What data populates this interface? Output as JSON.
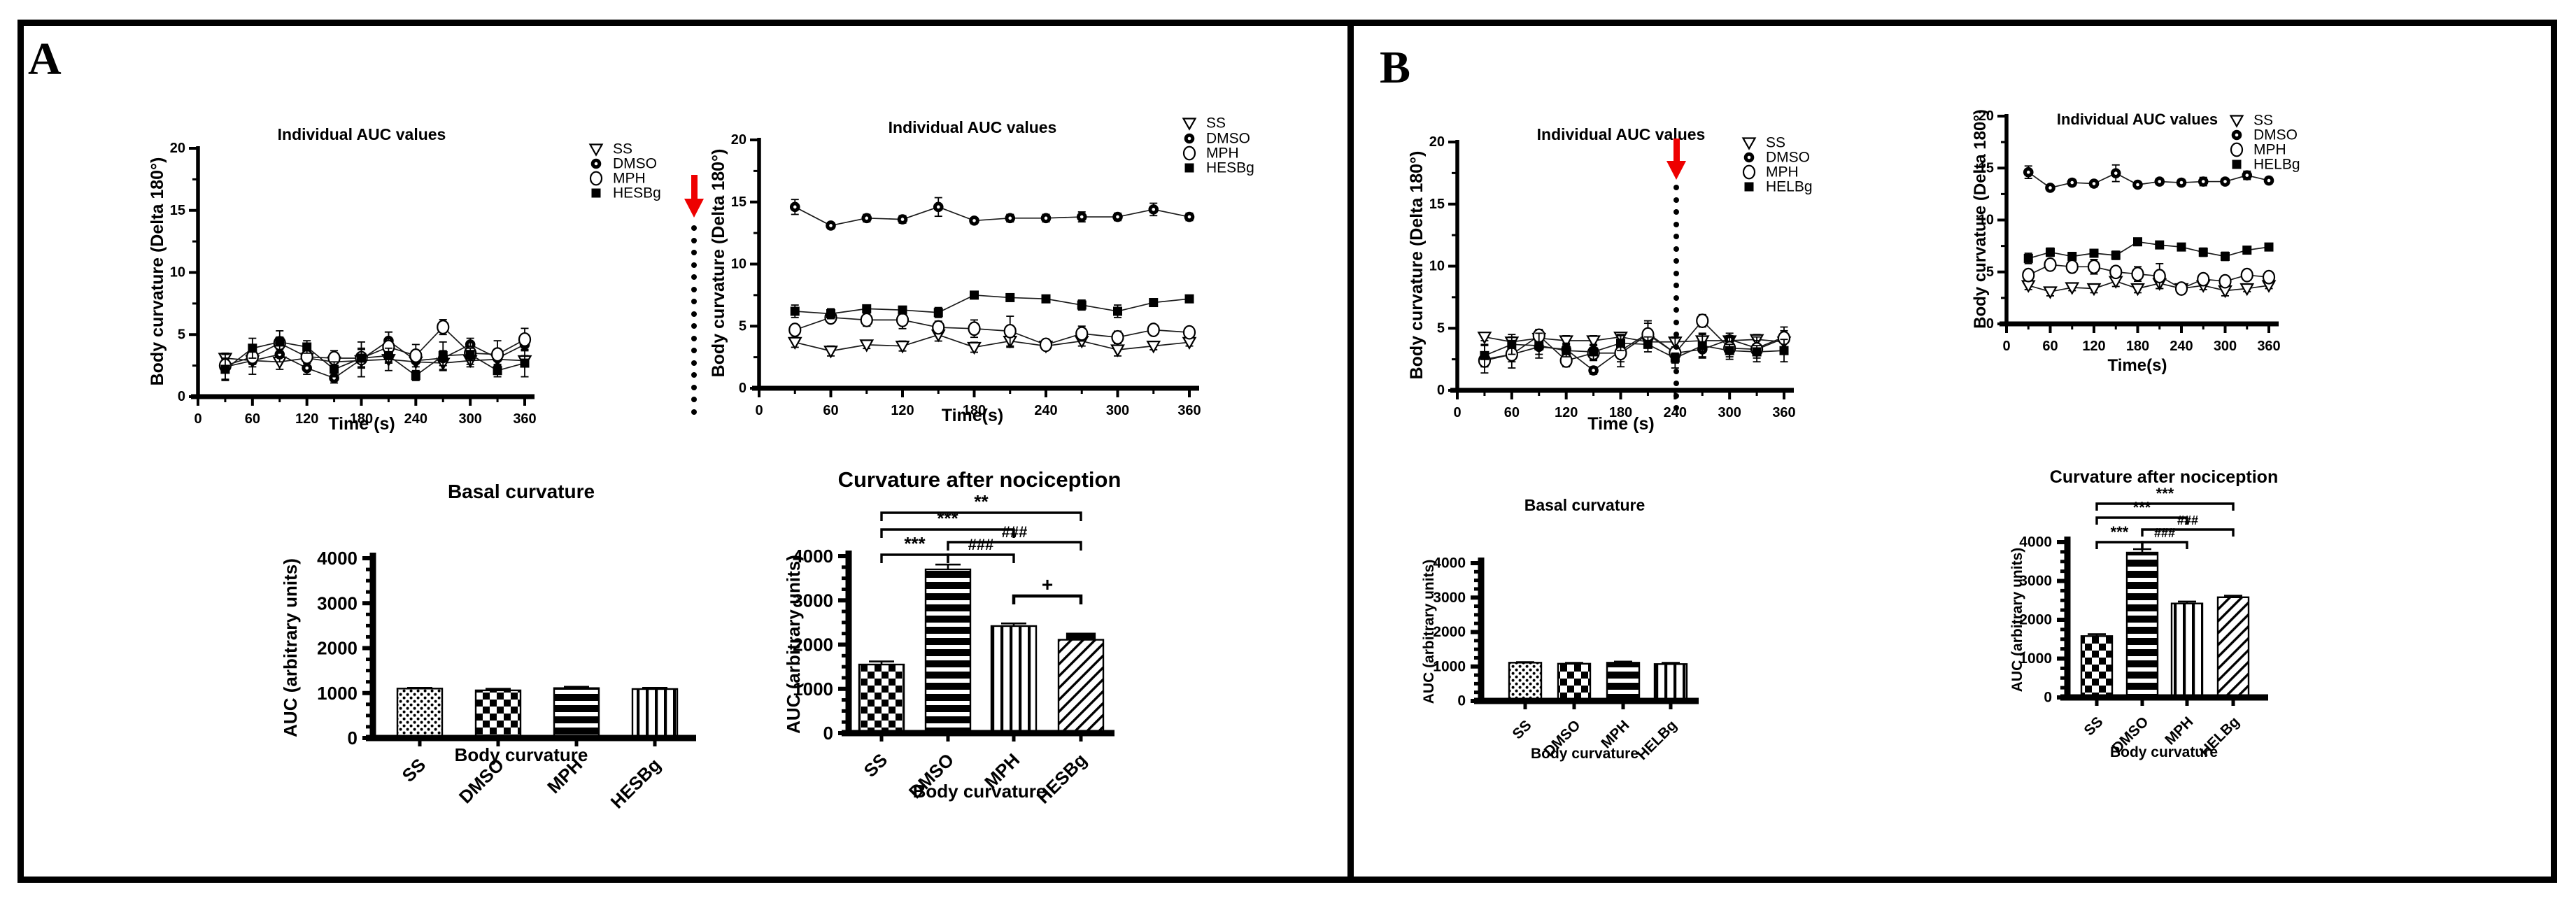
{
  "figure": {
    "arrow_color": "#ee0000",
    "ink_color": "#000000",
    "background_color": "#ffffff"
  },
  "panels": [
    {
      "label": "A"
    },
    {
      "label": "B"
    }
  ],
  "chart_data": [
    {
      "id": "A1",
      "panel": "A",
      "type": "line",
      "title": "Individual AUC values",
      "xlabel": "Time (s)",
      "ylabel": "Body curvature (Delta 180°)",
      "xlim": [
        0,
        360
      ],
      "ylim": [
        0,
        20
      ],
      "xticks": [
        0,
        60,
        120,
        180,
        240,
        300,
        360
      ],
      "yticks": [
        0,
        5,
        10,
        15,
        20
      ],
      "grid": false,
      "legend_position": "top-right",
      "x": [
        30,
        60,
        90,
        120,
        150,
        180,
        210,
        240,
        270,
        300,
        330,
        360
      ],
      "series": [
        {
          "name": "SS",
          "marker": "triangle-down-open",
          "values": [
            3.1,
            2.9,
            2.8,
            3.1,
            2.8,
            2.9,
            3.0,
            2.8,
            2.7,
            2.9,
            3.0,
            2.9
          ],
          "err": [
            0.4,
            0.5,
            0.6,
            0.4,
            0.5,
            0.5,
            0.9,
            0.4,
            0.6,
            0.5,
            0.5,
            0.4
          ]
        },
        {
          "name": "DMSO",
          "marker": "circle-dot",
          "values": [
            2.4,
            2.9,
            3.4,
            2.3,
            1.5,
            3.0,
            4.5,
            2.9,
            3.1,
            4.2,
            3.1,
            4.2
          ],
          "err": [
            1.0,
            1.1,
            0.6,
            0.5,
            0.4,
            1.4,
            0.7,
            1.3,
            0.6,
            0.5,
            0.6,
            0.5
          ]
        },
        {
          "name": "MPH",
          "marker": "circle-open",
          "values": [
            2.5,
            3.2,
            4.3,
            3.2,
            3.1,
            3.1,
            4.0,
            3.3,
            5.6,
            3.5,
            3.4,
            4.6
          ],
          "err": [
            0.5,
            0.6,
            0.5,
            0.5,
            0.6,
            0.8,
            1.2,
            0.4,
            0.6,
            0.9,
            1.1,
            0.9
          ]
        },
        {
          "name": "HESBg",
          "marker": "square-filled",
          "values": [
            2.2,
            3.9,
            4.4,
            4.0,
            2.2,
            3.1,
            3.3,
            1.7,
            3.3,
            3.4,
            2.1,
            2.7
          ],
          "err": [
            0.9,
            0.8,
            0.9,
            0.5,
            0.6,
            0.7,
            0.6,
            0.4,
            1.1,
            0.5,
            0.5,
            1.1
          ]
        }
      ]
    },
    {
      "id": "A2",
      "panel": "A",
      "type": "line",
      "title": "Individual AUC values",
      "xlabel": "Time(s)",
      "ylabel": "Body curvature (Delta 180°)",
      "xlim": [
        0,
        360
      ],
      "ylim": [
        0,
        20
      ],
      "xticks": [
        0,
        60,
        120,
        180,
        240,
        300,
        360
      ],
      "yticks": [
        0,
        5,
        10,
        15,
        20
      ],
      "grid": false,
      "legend_position": "top-right",
      "x": [
        30,
        60,
        90,
        120,
        150,
        180,
        210,
        240,
        270,
        300,
        330,
        360
      ],
      "series": [
        {
          "name": "SS",
          "marker": "triangle-down-open",
          "values": [
            3.7,
            3.0,
            3.5,
            3.4,
            4.3,
            3.3,
            3.8,
            3.4,
            3.8,
            3.1,
            3.4,
            3.7
          ],
          "err": [
            0.4,
            0.4,
            0.3,
            0.4,
            0.5,
            0.4,
            0.5,
            0.3,
            0.4,
            0.5,
            0.3,
            0.3
          ]
        },
        {
          "name": "DMSO",
          "marker": "circle-dot",
          "values": [
            14.6,
            13.1,
            13.7,
            13.6,
            14.6,
            13.5,
            13.7,
            13.7,
            13.8,
            13.8,
            14.4,
            13.8
          ],
          "err": [
            0.6,
            0.25,
            0.3,
            0.3,
            0.75,
            0.25,
            0.3,
            0.3,
            0.4,
            0.3,
            0.5,
            0.3
          ]
        },
        {
          "name": "MPH",
          "marker": "circle-open",
          "values": [
            4.7,
            5.7,
            5.5,
            5.5,
            4.9,
            4.8,
            4.6,
            3.5,
            4.4,
            4.1,
            4.7,
            4.5
          ],
          "err": [
            0.4,
            0.4,
            0.5,
            0.7,
            0.5,
            0.7,
            1.2,
            0.3,
            0.6,
            0.5,
            0.4,
            0.4
          ]
        },
        {
          "name": "HESBg",
          "marker": "square-filled",
          "values": [
            6.2,
            6.0,
            6.4,
            6.3,
            6.1,
            7.5,
            7.3,
            7.2,
            6.7,
            6.2,
            6.9,
            7.2
          ],
          "err": [
            0.5,
            0.4,
            0.3,
            0.3,
            0.4,
            0.3,
            0.3,
            0.3,
            0.4,
            0.5,
            0.3,
            0.3
          ]
        }
      ]
    },
    {
      "id": "A3",
      "panel": "A",
      "type": "bar",
      "title": "Basal curvature",
      "xlabel": "Body curvature",
      "ylabel": "AUC (arbitrary units)",
      "ylim": [
        0,
        4000
      ],
      "yticks": [
        0,
        1000,
        2000,
        3000,
        4000
      ],
      "categories": [
        "SS",
        "DMSO",
        "MPH",
        "HESBg"
      ],
      "values": [
        1100,
        1060,
        1110,
        1090
      ],
      "errors": [
        15,
        35,
        30,
        25
      ],
      "patterns": [
        "dots",
        "checker",
        "hstripes",
        "vstripes"
      ],
      "solid_cap_indices": [],
      "sig": []
    },
    {
      "id": "A4",
      "panel": "A",
      "type": "bar",
      "title": "Curvature after nociception",
      "xlabel": "Body curvature",
      "ylabel": "AUC (arbitrary units)",
      "ylim": [
        0,
        4000
      ],
      "yticks": [
        0,
        1000,
        2000,
        3000,
        4000
      ],
      "categories": [
        "SS",
        "DMSO",
        "MPH",
        "HESBg"
      ],
      "values": [
        1550,
        3700,
        2420,
        2110
      ],
      "errors": [
        70,
        110,
        60,
        80
      ],
      "patterns": [
        "checker",
        "hstripes",
        "vstripes",
        "diag"
      ],
      "solid_cap_indices": [
        3
      ],
      "sig": [
        {
          "a": 0,
          "b": 3,
          "label": "**"
        },
        {
          "a": 0,
          "b": 2,
          "label": "***"
        },
        {
          "a": 1,
          "b": 3,
          "label": "###"
        },
        {
          "a": 0,
          "b": 1,
          "label": "***"
        },
        {
          "a": 1,
          "b": 2,
          "label": "###"
        },
        {
          "a": 2,
          "b": 3,
          "label": "+"
        }
      ]
    },
    {
      "id": "B1",
      "panel": "B",
      "type": "line",
      "title": "Individual AUC values",
      "xlabel": "Time (s)",
      "ylabel": "Body curvature (Delta 180°)",
      "xlim": [
        0,
        360
      ],
      "ylim": [
        0,
        20
      ],
      "xticks": [
        0,
        60,
        120,
        180,
        240,
        300,
        360
      ],
      "yticks": [
        0,
        5,
        10,
        15,
        20
      ],
      "grid": false,
      "legend_position": "top-right",
      "x": [
        30,
        60,
        90,
        120,
        150,
        180,
        210,
        240,
        270,
        300,
        330,
        360
      ],
      "series": [
        {
          "name": "SS",
          "marker": "triangle-down-open",
          "values": [
            4.3,
            3.9,
            4.2,
            4.0,
            4.0,
            4.3,
            3.9,
            3.9,
            4.0,
            4.0,
            4.1,
            3.9
          ],
          "err": [
            0.3,
            0.4,
            0.5,
            0.4,
            0.4,
            0.3,
            0.5,
            0.4,
            0.5,
            0.4,
            0.4,
            0.4
          ]
        },
        {
          "name": "DMSO",
          "marker": "circle-dot",
          "values": [
            2.5,
            2.9,
            3.5,
            3.3,
            1.6,
            3.2,
            4.6,
            3.0,
            3.3,
            4.1,
            3.4,
            4.3
          ],
          "err": [
            1.1,
            1.1,
            0.6,
            0.5,
            0.3,
            1.3,
            0.8,
            1.2,
            0.6,
            0.5,
            0.6,
            0.5
          ]
        },
        {
          "name": "MPH",
          "marker": "circle-open",
          "values": [
            2.4,
            2.9,
            4.4,
            2.4,
            3.0,
            3.0,
            4.5,
            3.0,
            5.6,
            3.4,
            3.3,
            4.2
          ],
          "err": [
            0.5,
            0.6,
            0.5,
            0.5,
            0.6,
            0.7,
            1.1,
            0.4,
            0.5,
            0.9,
            1.0,
            0.9
          ]
        },
        {
          "name": "HELBg",
          "marker": "square-filled",
          "values": [
            2.8,
            3.7,
            3.6,
            3.2,
            3.1,
            3.8,
            3.7,
            2.6,
            3.6,
            3.2,
            3.1,
            3.2
          ],
          "err": [
            0.9,
            0.8,
            1.0,
            0.5,
            0.6,
            0.6,
            0.6,
            0.4,
            1.0,
            0.5,
            0.5,
            0.9
          ]
        }
      ]
    },
    {
      "id": "B2",
      "panel": "B",
      "type": "line",
      "title": "Individual AUC values",
      "xlabel": "Time(s)",
      "ylabel": "Body curvature (Delta 180°)",
      "xlim": [
        0,
        360
      ],
      "ylim": [
        0,
        20
      ],
      "xticks": [
        0,
        60,
        120,
        180,
        240,
        300,
        360
      ],
      "yticks": [
        0,
        5,
        10,
        15,
        20
      ],
      "grid": false,
      "legend_position": "top-right",
      "x": [
        30,
        60,
        90,
        120,
        150,
        180,
        210,
        240,
        270,
        300,
        330,
        360
      ],
      "series": [
        {
          "name": "SS",
          "marker": "triangle-down-open",
          "values": [
            3.7,
            3.1,
            3.5,
            3.4,
            4.1,
            3.4,
            3.9,
            3.4,
            3.7,
            3.2,
            3.4,
            3.7
          ],
          "err": [
            0.4,
            0.4,
            0.3,
            0.4,
            0.5,
            0.4,
            0.5,
            0.3,
            0.4,
            0.5,
            0.3,
            0.3
          ]
        },
        {
          "name": "DMSO",
          "marker": "circle-dot",
          "values": [
            14.6,
            13.1,
            13.6,
            13.5,
            14.5,
            13.4,
            13.7,
            13.6,
            13.7,
            13.7,
            14.3,
            13.8
          ],
          "err": [
            0.6,
            0.25,
            0.3,
            0.3,
            0.8,
            0.25,
            0.3,
            0.3,
            0.4,
            0.3,
            0.4,
            0.3
          ]
        },
        {
          "name": "MPH",
          "marker": "circle-open",
          "values": [
            4.7,
            5.7,
            5.5,
            5.5,
            5.0,
            4.8,
            4.6,
            3.4,
            4.3,
            4.1,
            4.7,
            4.5
          ],
          "err": [
            0.4,
            0.4,
            0.4,
            0.7,
            0.5,
            0.7,
            1.2,
            0.3,
            0.5,
            0.5,
            0.4,
            0.4
          ]
        },
        {
          "name": "HELBg",
          "marker": "square-filled",
          "values": [
            6.3,
            6.9,
            6.5,
            6.8,
            6.6,
            7.9,
            7.6,
            7.4,
            6.9,
            6.5,
            7.1,
            7.4
          ],
          "err": [
            0.5,
            0.4,
            0.3,
            0.3,
            0.4,
            0.3,
            0.3,
            0.3,
            0.4,
            0.4,
            0.3,
            0.3
          ]
        }
      ]
    },
    {
      "id": "B3",
      "panel": "B",
      "type": "bar",
      "title": "Basal curvature",
      "xlabel": "Body curvature",
      "ylabel": "AUC (arbitrary units)",
      "ylim": [
        0,
        4000
      ],
      "yticks": [
        0,
        1000,
        2000,
        3000,
        4000
      ],
      "categories": [
        "SS",
        "DMSO",
        "MPH",
        "HELBg"
      ],
      "values": [
        1110,
        1080,
        1110,
        1070
      ],
      "errors": [
        15,
        25,
        30,
        35
      ],
      "patterns": [
        "dots",
        "checker",
        "hstripes",
        "vstripes"
      ],
      "solid_cap_indices": [],
      "sig": []
    },
    {
      "id": "B4",
      "panel": "B",
      "type": "bar",
      "title": "Curvature after nociception",
      "xlabel": "Body curvature",
      "ylabel": "AUC (arbitrary units)",
      "ylim": [
        0,
        4000
      ],
      "yticks": [
        0,
        1000,
        2000,
        3000,
        4000
      ],
      "categories": [
        "SS",
        "DMSO",
        "MPH",
        "HELBg"
      ],
      "values": [
        1580,
        3730,
        2420,
        2580
      ],
      "errors": [
        50,
        90,
        50,
        40
      ],
      "patterns": [
        "checker",
        "hstripes",
        "vstripes",
        "diag"
      ],
      "solid_cap_indices": [],
      "sig": [
        {
          "a": 0,
          "b": 3,
          "label": "***"
        },
        {
          "a": 0,
          "b": 2,
          "label": "***"
        },
        {
          "a": 1,
          "b": 3,
          "label": "###"
        },
        {
          "a": 0,
          "b": 1,
          "label": "***"
        },
        {
          "a": 1,
          "b": 2,
          "label": "###"
        }
      ]
    }
  ]
}
